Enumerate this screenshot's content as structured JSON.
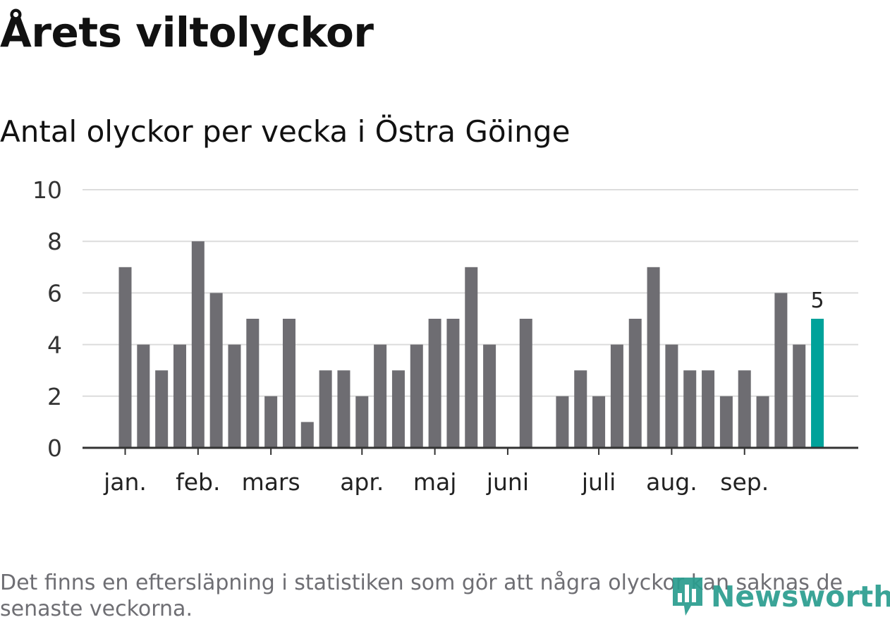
{
  "title": "Årets viltolyckor",
  "subtitle": "Antal olyckor per vecka i Östra Göinge",
  "footnote": "Det finns en eftersläpning i statistiken som gör att några olyckor kan saknas de senaste veckorna.",
  "logo": {
    "text": "Newsworthy",
    "icon": "bar-chart-speech-bubble-icon",
    "color": "#2a9d8f"
  },
  "colors": {
    "bar": "#6e6d72",
    "highlight": "#00a29a",
    "grid": "#dcdcdc",
    "axis": "#333333"
  },
  "chart_data": {
    "type": "bar",
    "ylim": [
      0,
      10
    ],
    "yticks": [
      0,
      2,
      4,
      6,
      8,
      10
    ],
    "grid": true,
    "values": [
      7,
      4,
      3,
      4,
      8,
      6,
      4,
      5,
      2,
      5,
      1,
      3,
      3,
      2,
      4,
      3,
      4,
      5,
      5,
      7,
      4,
      0,
      5,
      0,
      2,
      3,
      2,
      4,
      5,
      7,
      4,
      3,
      3,
      2,
      3,
      2,
      6,
      4,
      5
    ],
    "month_ticks": [
      {
        "label": "jan.",
        "bar": 0
      },
      {
        "label": "feb.",
        "bar": 4
      },
      {
        "label": "mars",
        "bar": 8
      },
      {
        "label": "apr.",
        "bar": 13
      },
      {
        "label": "maj",
        "bar": 17
      },
      {
        "label": "juni",
        "bar": 21
      },
      {
        "label": "juli",
        "bar": 26
      },
      {
        "label": "aug.",
        "bar": 30
      },
      {
        "label": "sep.",
        "bar": 34
      }
    ],
    "highlight_bar": 38,
    "highlight_label": "5"
  }
}
